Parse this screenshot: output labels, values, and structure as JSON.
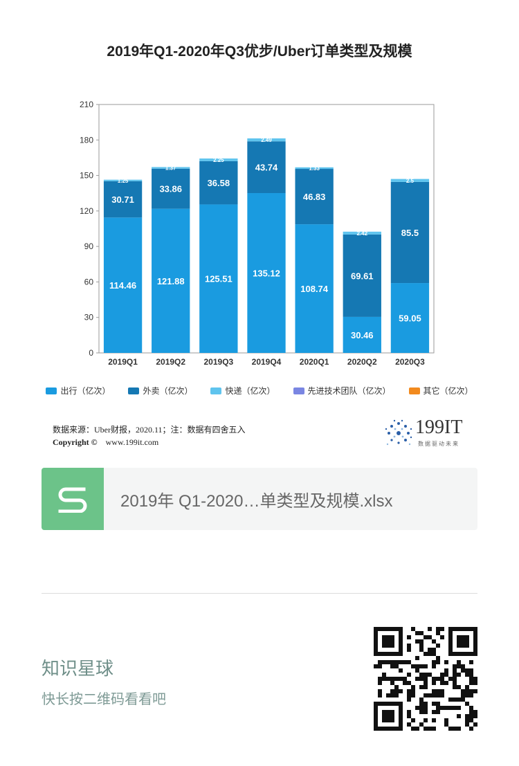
{
  "title": "2019年Q1-2020年Q3优步/Uber订单类型及规模",
  "chart_data": {
    "type": "bar",
    "stacked": true,
    "categories": [
      "2019Q1",
      "2019Q2",
      "2019Q3",
      "2019Q4",
      "2020Q1",
      "2020Q2",
      "2020Q3"
    ],
    "ylim": [
      0,
      210
    ],
    "yticks": [
      0,
      30,
      60,
      90,
      120,
      150,
      180,
      210
    ],
    "grid": false,
    "legend_position": "bottom",
    "series": [
      {
        "name": "出行（亿次）",
        "color": "#1a9be0",
        "values": [
          114.46,
          121.88,
          125.51,
          135.12,
          108.74,
          30.46,
          59.05
        ]
      },
      {
        "name": "外卖（亿次）",
        "color": "#1578b3",
        "values": [
          30.71,
          33.86,
          36.58,
          43.74,
          46.83,
          69.61,
          85.5
        ]
      },
      {
        "name": "快递（亿次）",
        "color": "#5fc4ee",
        "values": [
          1.25,
          1.37,
          2.25,
          2.49,
          1.33,
          2.42,
          2.5
        ]
      },
      {
        "name": "先进技术团队（亿次）",
        "color": "#7a86e2",
        "values": [
          0,
          0,
          0,
          0,
          0,
          0,
          0
        ]
      },
      {
        "name": "其它（亿次）",
        "color": "#f28a1e",
        "values": [
          0,
          0,
          0,
          0,
          0,
          0,
          0
        ]
      }
    ],
    "data_labels": [
      [
        "114.46",
        "121.88",
        "125.51",
        "135.12",
        "108.74",
        "30.46",
        "59.05"
      ],
      [
        "30.71",
        "33.86",
        "36.58",
        "43.74",
        "46.83",
        "69.61",
        "85.5"
      ],
      [
        "1.25",
        "1.37",
        "2.25",
        "2.49",
        "1.33",
        "2.42",
        "2.5"
      ]
    ]
  },
  "source": {
    "text": "数据来源：Uber财报，2020.11；注：数据有四舍五入",
    "copyright_label": "Copyright ©",
    "website": "www.199it.com"
  },
  "brand": {
    "name": "199IT",
    "slogan": "数据驱动未来",
    "color": "#2b5fa8"
  },
  "file": {
    "name": "2019年 Q1-2020…单类型及规模.xlsx",
    "icon": "spreadsheet-s-icon",
    "color": "#6cc389"
  },
  "planet": {
    "title": "知识星球",
    "subtitle": "快长按二维码看看吧"
  }
}
